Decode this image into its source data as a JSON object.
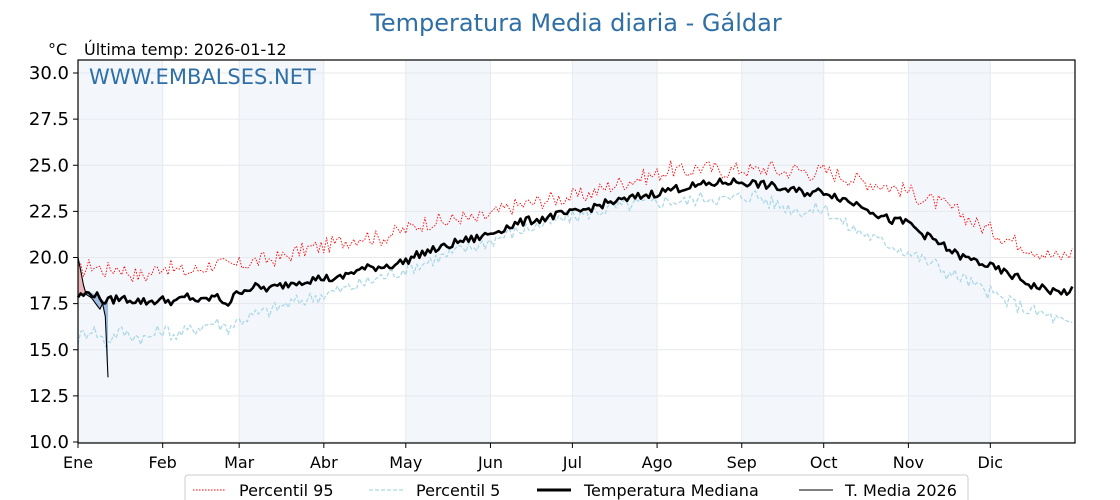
{
  "chart_data": {
    "type": "line",
    "title": "Temperatura Media diaria - Gáldar",
    "ylabel": "°C",
    "subtitle": "Última temp: 2026-01-12",
    "watermark": "WWW.EMBALSES.NET",
    "ylim": [
      10.0,
      30.5
    ],
    "xlim_days": [
      0,
      365
    ],
    "yticks": [
      "10.0",
      "12.5",
      "15.0",
      "17.5",
      "20.0",
      "22.5",
      "25.0",
      "27.5",
      "30.0"
    ],
    "ytick_values": [
      10.0,
      12.5,
      15.0,
      17.5,
      20.0,
      22.5,
      25.0,
      27.5,
      30.0
    ],
    "xticks": [
      {
        "label": "Ene",
        "day": 0
      },
      {
        "label": "Feb",
        "day": 31
      },
      {
        "label": "Mar",
        "day": 59
      },
      {
        "label": "Abr",
        "day": 90
      },
      {
        "label": "May",
        "day": 120
      },
      {
        "label": "Jun",
        "day": 151
      },
      {
        "label": "Jul",
        "day": 181
      },
      {
        "label": "Ago",
        "day": 212
      },
      {
        "label": "Sep",
        "day": 243
      },
      {
        "label": "Oct",
        "day": 273
      },
      {
        "label": "Nov",
        "day": 304
      },
      {
        "label": "Dic",
        "day": 334
      }
    ],
    "shaded_months": [
      "Ene",
      "Mar",
      "May",
      "Jul",
      "Sep",
      "Nov"
    ],
    "grid": true,
    "legend_position": "bottom-center",
    "series": [
      {
        "name": "Percentil 95",
        "color": "#ff0000",
        "style": "dotted",
        "x": [
          0,
          5,
          10,
          15,
          20,
          25,
          31,
          36,
          40,
          45,
          50,
          55,
          59,
          65,
          70,
          75,
          80,
          85,
          90,
          95,
          100,
          105,
          110,
          115,
          120,
          125,
          130,
          135,
          140,
          145,
          151,
          156,
          160,
          165,
          170,
          175,
          181,
          186,
          190,
          195,
          200,
          205,
          212,
          217,
          222,
          227,
          232,
          237,
          243,
          248,
          253,
          258,
          263,
          268,
          273,
          278,
          283,
          288,
          293,
          298,
          304,
          309,
          314,
          319,
          324,
          329,
          334,
          339,
          344,
          349,
          354,
          359,
          364
        ],
        "values": [
          19.2,
          19.6,
          19.3,
          19.5,
          19.1,
          19.0,
          19.6,
          19.3,
          19.2,
          19.4,
          19.7,
          19.5,
          19.6,
          19.8,
          19.9,
          20.0,
          20.3,
          20.5,
          20.6,
          20.8,
          21.0,
          21.2,
          21.0,
          21.3,
          21.5,
          21.8,
          22.0,
          21.9,
          22.2,
          22.0,
          22.3,
          22.6,
          22.8,
          22.9,
          23.1,
          23.2,
          23.3,
          23.4,
          23.6,
          23.9,
          24.1,
          24.3,
          24.5,
          24.8,
          24.6,
          24.9,
          24.8,
          24.7,
          24.8,
          24.7,
          24.9,
          24.6,
          24.8,
          24.6,
          24.7,
          24.5,
          24.3,
          24.1,
          24.0,
          23.8,
          23.6,
          23.2,
          23.0,
          22.7,
          22.3,
          21.8,
          21.5,
          21.1,
          20.8,
          20.5,
          20.2,
          20.0,
          20.3
        ]
      },
      {
        "name": "Percentil 5",
        "color": "#add8e6",
        "style": "dashed",
        "x": [
          0,
          5,
          10,
          15,
          20,
          25,
          31,
          36,
          40,
          45,
          50,
          55,
          59,
          65,
          70,
          75,
          80,
          85,
          90,
          95,
          100,
          105,
          110,
          115,
          120,
          125,
          130,
          135,
          140,
          145,
          151,
          156,
          160,
          165,
          170,
          175,
          181,
          186,
          190,
          195,
          200,
          205,
          212,
          217,
          222,
          227,
          232,
          237,
          243,
          248,
          253,
          258,
          263,
          268,
          273,
          278,
          283,
          288,
          293,
          298,
          304,
          309,
          314,
          319,
          324,
          329,
          334,
          339,
          344,
          349,
          354,
          359,
          364
        ],
        "values": [
          15.6,
          16.2,
          15.4,
          16.0,
          15.8,
          15.6,
          16.1,
          15.8,
          16.0,
          16.3,
          16.5,
          16.2,
          16.6,
          16.9,
          17.1,
          17.4,
          17.6,
          17.8,
          18.0,
          18.2,
          18.4,
          18.6,
          18.9,
          19.1,
          19.4,
          19.6,
          19.9,
          20.1,
          20.4,
          20.6,
          20.9,
          21.2,
          21.4,
          21.6,
          21.8,
          22.0,
          22.2,
          22.4,
          22.5,
          22.7,
          22.8,
          22.9,
          23.0,
          23.1,
          23.0,
          23.2,
          23.3,
          23.1,
          23.3,
          23.4,
          23.0,
          22.8,
          22.6,
          22.5,
          22.7,
          22.1,
          21.6,
          21.3,
          20.9,
          20.7,
          20.3,
          19.9,
          19.6,
          19.1,
          18.9,
          18.4,
          18.1,
          17.7,
          17.4,
          17.1,
          16.9,
          16.6,
          16.2
        ]
      },
      {
        "name": "Temperatura Mediana",
        "color": "#000000",
        "style": "solid-thick",
        "x": [
          0,
          5,
          10,
          15,
          20,
          25,
          31,
          36,
          40,
          45,
          50,
          55,
          59,
          65,
          70,
          75,
          80,
          85,
          90,
          95,
          100,
          105,
          110,
          115,
          120,
          125,
          130,
          135,
          140,
          145,
          151,
          156,
          160,
          165,
          170,
          175,
          181,
          186,
          190,
          195,
          200,
          205,
          212,
          217,
          222,
          227,
          232,
          237,
          243,
          248,
          253,
          258,
          263,
          268,
          273,
          278,
          283,
          288,
          293,
          298,
          304,
          309,
          314,
          319,
          324,
          329,
          334,
          339,
          344,
          349,
          354,
          359,
          364
        ],
        "values": [
          17.9,
          18.1,
          17.6,
          17.8,
          17.7,
          17.6,
          17.7,
          17.6,
          17.9,
          17.6,
          17.9,
          17.5,
          18.2,
          18.4,
          18.3,
          18.5,
          18.7,
          18.8,
          18.9,
          18.8,
          19.2,
          19.4,
          19.5,
          19.6,
          19.8,
          20.2,
          20.4,
          20.6,
          20.9,
          21.0,
          21.3,
          21.6,
          21.8,
          22.0,
          22.1,
          22.3,
          22.4,
          22.6,
          22.8,
          23.0,
          23.1,
          23.3,
          23.5,
          23.7,
          23.8,
          23.9,
          24.0,
          24.1,
          24.1,
          24.0,
          23.9,
          23.7,
          23.6,
          23.5,
          23.6,
          23.3,
          23.0,
          22.8,
          22.3,
          22.0,
          21.9,
          21.3,
          20.9,
          20.4,
          20.0,
          19.8,
          19.5,
          19.2,
          18.9,
          18.5,
          18.3,
          18.1,
          18.2
        ]
      },
      {
        "name": "T. Media 2026",
        "color": "#000000",
        "style": "solid-thin",
        "x": [
          0,
          1,
          2,
          3,
          4,
          5,
          6,
          7,
          8,
          9,
          10,
          11
        ],
        "values": [
          20.0,
          19.3,
          18.5,
          18.0,
          17.9,
          17.8,
          17.6,
          17.4,
          17.2,
          17.5,
          16.8,
          13.5
        ]
      }
    ]
  },
  "legend": [
    {
      "label": "Percentil 95"
    },
    {
      "label": "Percentil 5"
    },
    {
      "label": "Temperatura Mediana"
    },
    {
      "label": "T. Media 2026"
    }
  ]
}
